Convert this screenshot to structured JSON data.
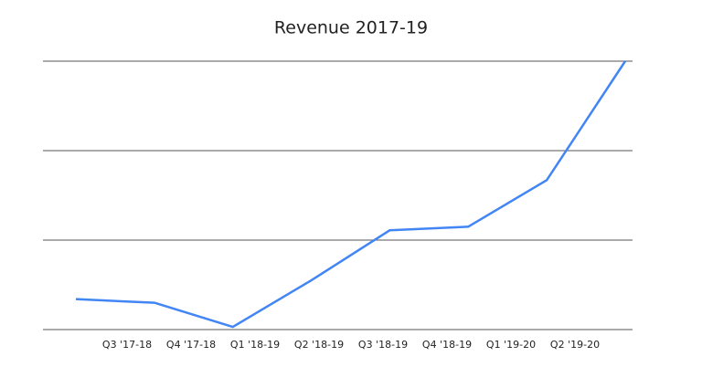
{
  "chart_data": {
    "type": "line",
    "title": "Revenue 2017-19",
    "categories": [
      "Q3 '17-18",
      "Q4 '17-18",
      "Q1 '18-19",
      "Q2 '18-19",
      "Q3 '18-19",
      "Q4 '18-19",
      "Q1 '19-20",
      "Q2 '19-20"
    ],
    "series": [
      {
        "color": "#4285f4",
        "values": [
          0.34,
          0.3,
          0.03,
          0.55,
          1.11,
          1.15,
          1.67,
          3.0
        ]
      }
    ],
    "ylim": [
      0,
      3
    ],
    "yticks": [
      0,
      1,
      2,
      3
    ],
    "ytick_labels": false,
    "grid": true
  }
}
